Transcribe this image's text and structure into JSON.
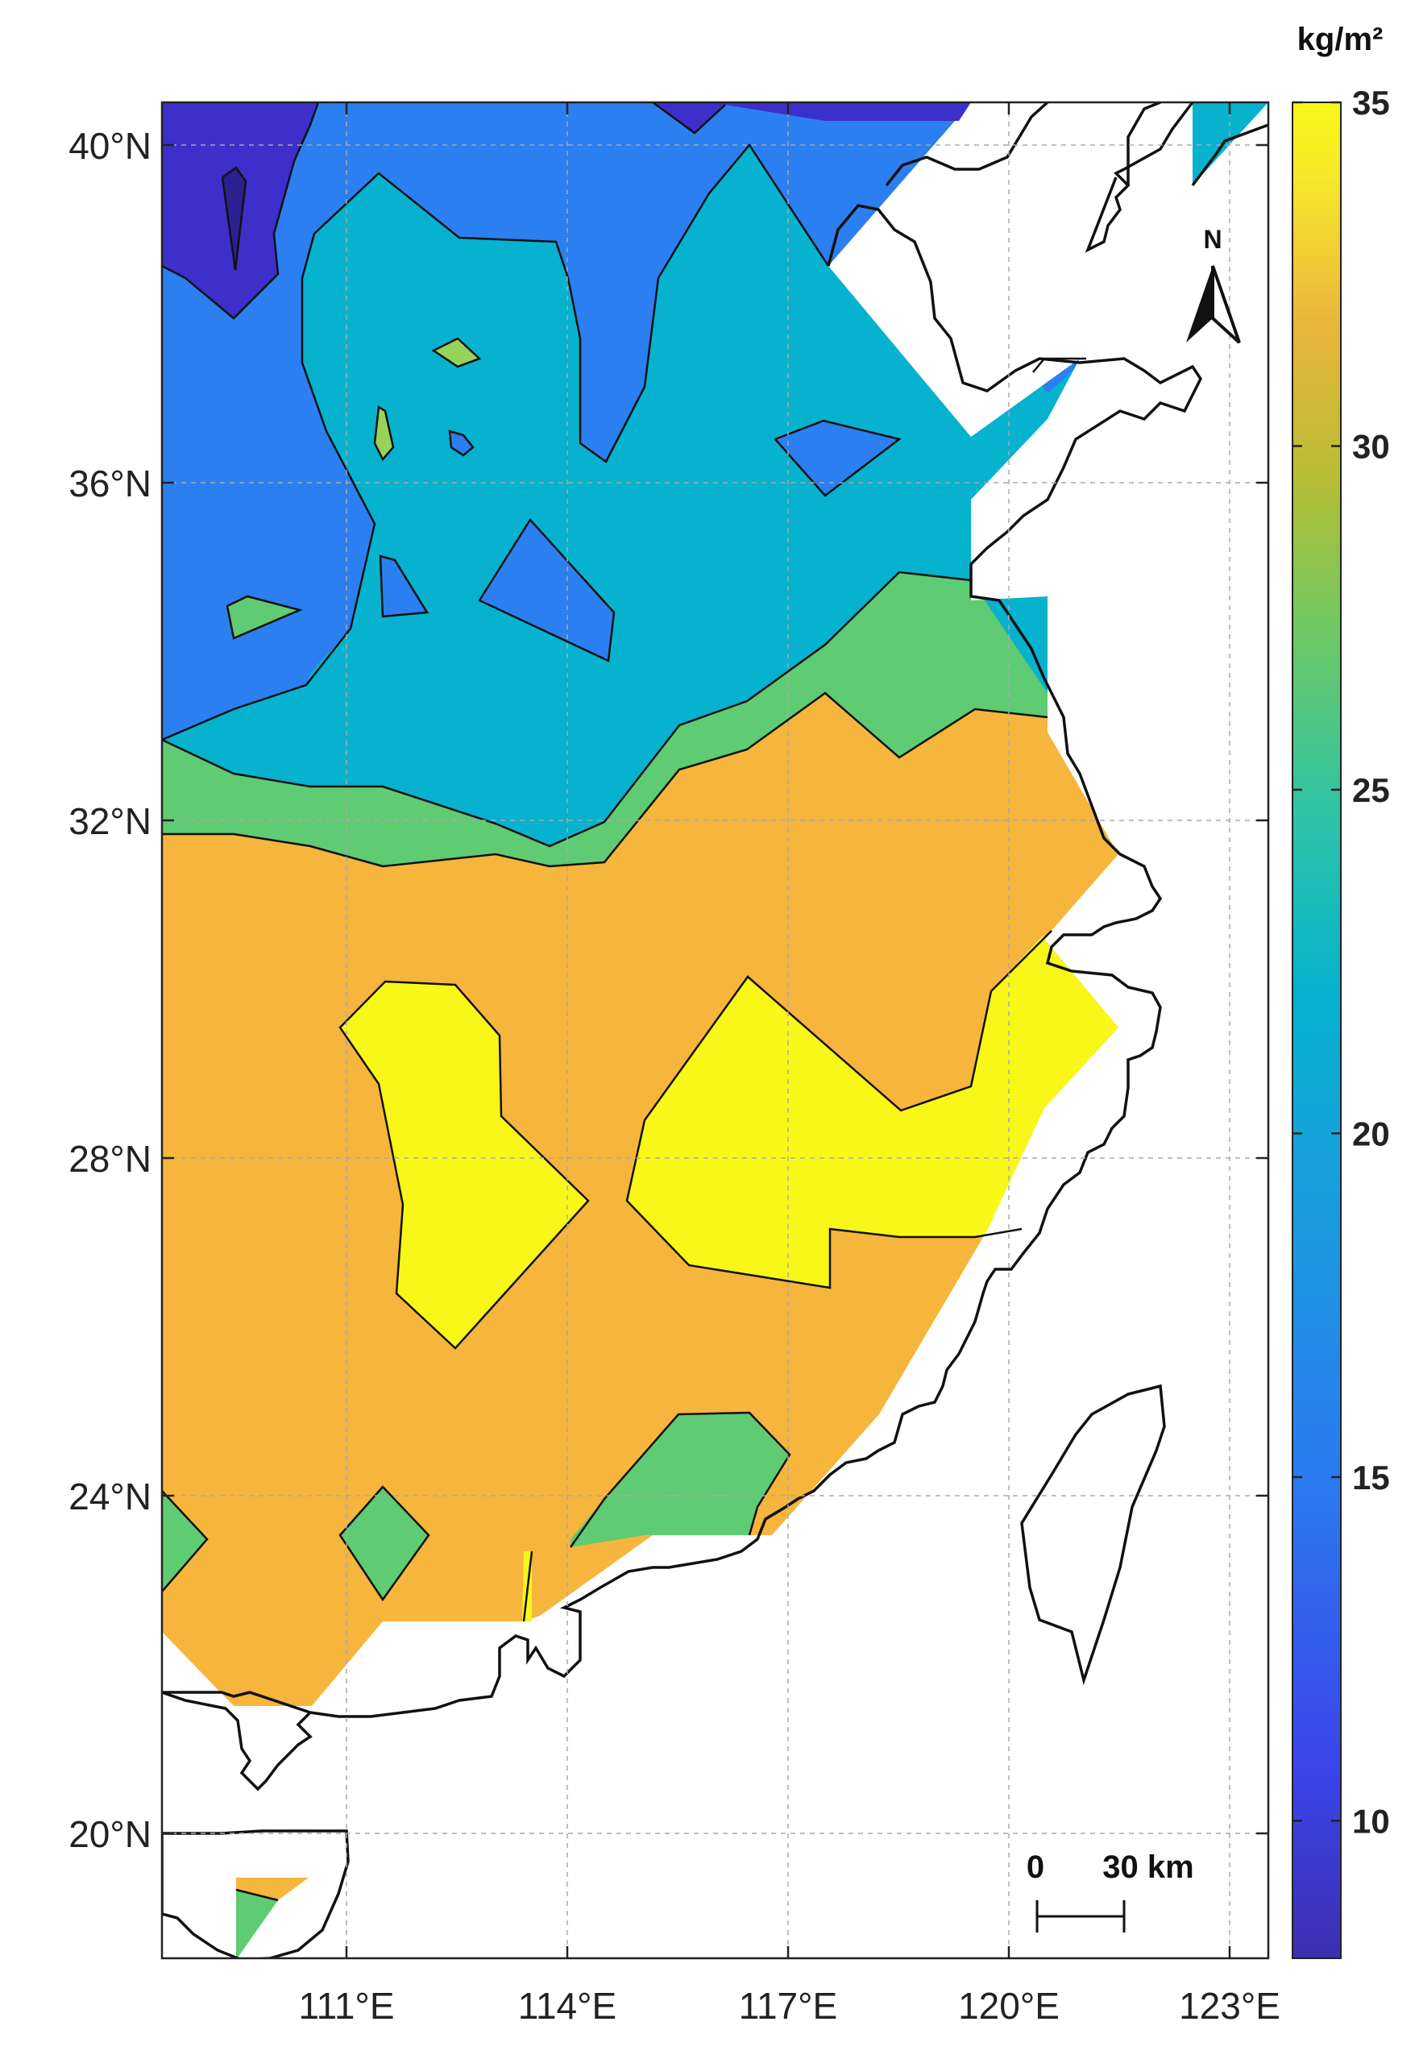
{
  "map": {
    "colorbar": {
      "unit": "kg/m²",
      "ticks": [
        "35",
        "30",
        "25",
        "20",
        "15",
        "10"
      ],
      "range": [
        8,
        35
      ]
    },
    "lat_labels": [
      "40°N",
      "36°N",
      "32°N",
      "28°N",
      "24°N",
      "20°N"
    ],
    "lon_labels": [
      "111°E",
      "114°E",
      "117°E",
      "120°E",
      "123°E"
    ],
    "north_arrow": "N",
    "scale_bar": {
      "start": "0",
      "end": "30 km"
    },
    "colors": {
      "very_low": "#3d2fc9",
      "low": "#2b7ff0",
      "mid": "#06b2ce",
      "green": "#5fcb72",
      "light_green": "#96d35a",
      "orange": "#f6b53c",
      "yellow": "#f8f718"
    }
  }
}
